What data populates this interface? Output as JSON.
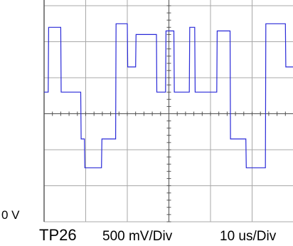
{
  "chart_data": {
    "type": "line",
    "title": "",
    "xlabel": "",
    "ylabel": "",
    "channel_label": "TP26",
    "zero_label": "0 V",
    "vertical_scale": "500 mV/Div",
    "horizontal_scale": "10 us/Div",
    "x_unit": "div",
    "y_unit": "div",
    "xlim": [
      0,
      6
    ],
    "ylim": [
      0,
      6
    ],
    "grid": true,
    "colors": {
      "trace": "#2a2ad8",
      "grid": "#a8a8a8",
      "axis": "#505050"
    },
    "series": [
      {
        "x": [
          0,
          0.1,
          0.11,
          0.4,
          0.41,
          0.88,
          0.89,
          0.97,
          0.98,
          1.38,
          1.39,
          1.72,
          1.73,
          2.0,
          2.01,
          2.2,
          2.21,
          2.7,
          2.71,
          2.92,
          2.93,
          3.12,
          3.13,
          3.49,
          3.5,
          3.62,
          3.63,
          4.15,
          4.16,
          4.47,
          4.48,
          4.85,
          4.86,
          5.32,
          5.33,
          5.8,
          5.81,
          6.0
        ],
        "y": [
          3.6,
          3.6,
          5.4,
          5.4,
          3.6,
          3.6,
          2.3,
          2.3,
          1.5,
          1.5,
          2.3,
          2.3,
          5.5,
          5.5,
          4.3,
          4.3,
          5.2,
          5.2,
          3.6,
          3.6,
          5.3,
          5.3,
          3.6,
          3.6,
          5.4,
          5.4,
          3.6,
          3.6,
          5.3,
          5.3,
          2.3,
          2.3,
          1.5,
          1.5,
          5.5,
          5.5,
          4.3,
          4.3
        ]
      }
    ]
  }
}
